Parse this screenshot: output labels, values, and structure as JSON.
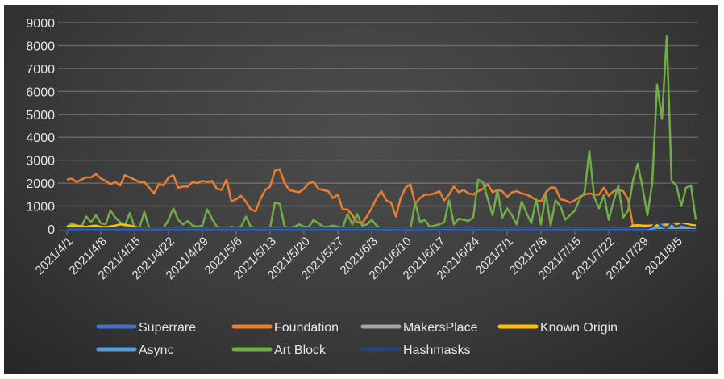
{
  "chart_data": {
    "type": "line",
    "title": "",
    "xlabel": "",
    "ylabel": "",
    "ylim": [
      0,
      9000
    ],
    "yticks": [
      "0",
      "1000",
      "2000",
      "3000",
      "4000",
      "5000",
      "6000",
      "7000",
      "8000",
      "9000"
    ],
    "grid": true,
    "legend_position": "bottom",
    "x_start": "2021/4/1",
    "x_end": "2021/8/9",
    "x_step": "1 day",
    "xtick_labels": [
      "2021/4/1",
      "2021/4/8",
      "2021/4/15",
      "2021/4/22",
      "2021/4/29",
      "2021/5/6",
      "2021/5/13",
      "2021/5/20",
      "2021/5/27",
      "2021/6/3",
      "2021/6/10",
      "2021/6/17",
      "2021/6/24",
      "2021/7/1",
      "2021/7/8",
      "2021/7/15",
      "2021/7/22",
      "2021/7/29",
      "2021/8/5"
    ],
    "series": [
      {
        "name": "Superrare",
        "color": "#4472C4",
        "values": [
          60,
          70,
          60,
          50,
          60,
          70,
          60,
          50,
          60,
          60,
          50,
          60,
          70,
          60,
          50,
          60,
          60,
          50,
          60,
          60,
          60,
          50,
          60,
          70,
          60,
          50,
          60,
          60,
          50,
          60,
          60,
          50,
          60,
          70,
          60,
          50,
          60,
          60,
          50,
          60,
          60,
          50,
          60,
          70,
          60,
          50,
          60,
          60,
          50,
          60,
          60,
          50,
          60,
          70,
          60,
          50,
          60,
          60,
          50,
          60,
          60,
          50,
          60,
          70,
          60,
          50,
          60,
          60,
          50,
          60,
          60,
          50,
          60,
          70,
          60,
          50,
          60,
          60,
          50,
          60,
          60,
          50,
          60,
          70,
          60,
          50,
          60,
          60,
          50,
          60,
          60,
          50,
          60,
          70,
          60,
          50,
          60,
          60,
          50,
          60,
          60,
          50,
          60,
          70,
          60,
          50,
          60,
          60,
          50,
          60,
          60,
          50,
          60,
          70,
          60,
          50,
          60,
          60,
          50,
          60,
          60,
          80,
          100,
          120,
          100,
          120,
          100,
          150,
          120,
          100,
          80
        ]
      },
      {
        "name": "Foundation",
        "color": "#ED7D31",
        "values": [
          2150,
          2200,
          2050,
          2150,
          2250,
          2250,
          2400,
          2200,
          2100,
          1950,
          2050,
          1900,
          2350,
          2250,
          2150,
          2050,
          2050,
          1800,
          1550,
          1950,
          1900,
          2250,
          2350,
          1800,
          1850,
          1850,
          2050,
          2000,
          2100,
          2050,
          2100,
          1750,
          1700,
          2150,
          1200,
          1300,
          1450,
          1200,
          850,
          780,
          1300,
          1700,
          1850,
          2550,
          2600,
          2000,
          1700,
          1650,
          1600,
          1750,
          2000,
          2050,
          1750,
          1700,
          1650,
          1350,
          1500,
          850,
          850,
          600,
          300,
          250,
          550,
          900,
          1350,
          1650,
          1250,
          1150,
          550,
          1350,
          1800,
          1950,
          1100,
          1350,
          1500,
          1500,
          1550,
          1650,
          1250,
          1500,
          1850,
          1600,
          1700,
          1550,
          1500,
          1650,
          1750,
          1950,
          1600,
          1700,
          1650,
          1400,
          1600,
          1650,
          1550,
          1500,
          1400,
          1250,
          1200,
          1600,
          1800,
          1800,
          1300,
          1250,
          1150,
          1250,
          1400,
          1500,
          1550,
          1500,
          1500,
          1800,
          1450,
          1650,
          1700,
          1650,
          1300,
          150,
          150,
          150,
          150,
          160,
          170,
          170,
          180,
          200,
          180,
          220,
          200,
          180,
          150
        ]
      },
      {
        "name": "MakersPlace",
        "color": "#A5A5A5",
        "values": [
          30,
          30,
          30,
          30,
          30,
          30,
          30,
          30,
          30,
          30,
          30,
          30,
          30,
          30,
          30,
          30,
          30,
          30,
          30,
          30,
          30,
          30,
          30,
          30,
          30,
          30,
          30,
          30,
          30,
          30,
          30,
          30,
          30,
          30,
          30,
          30,
          30,
          30,
          30,
          30,
          30,
          30,
          30,
          30,
          30,
          30,
          30,
          30,
          30,
          30,
          30,
          30,
          30,
          30,
          30,
          30,
          30,
          30,
          30,
          30,
          30,
          30,
          30,
          30,
          30,
          30,
          30,
          30,
          30,
          30,
          30,
          30,
          30,
          30,
          30,
          30,
          30,
          30,
          30,
          30,
          30,
          30,
          30,
          30,
          30,
          30,
          30,
          30,
          30,
          30,
          30,
          30,
          30,
          30,
          30,
          30,
          30,
          30,
          30,
          30,
          30,
          30,
          30,
          30,
          30,
          30,
          30,
          30,
          30,
          30,
          30,
          30,
          30,
          30,
          30,
          30,
          30,
          40,
          40,
          40,
          40,
          40,
          50,
          50,
          50,
          50,
          50,
          50,
          50,
          50,
          50
        ]
      },
      {
        "name": "Known Origin",
        "color": "#FFC000",
        "values": [
          100,
          150,
          150,
          120,
          100,
          130,
          150,
          100,
          80,
          120,
          150,
          200,
          180,
          150,
          100,
          60,
          40,
          30,
          20,
          20,
          20,
          20,
          20,
          20,
          20,
          20,
          20,
          20,
          20,
          20,
          20,
          20,
          20,
          20,
          20,
          20,
          20,
          20,
          20,
          20,
          20,
          20,
          20,
          20,
          20,
          20,
          20,
          20,
          20,
          20,
          20,
          20,
          20,
          20,
          20,
          20,
          20,
          20,
          20,
          20,
          20,
          20,
          20,
          20,
          20,
          20,
          20,
          20,
          20,
          20,
          20,
          20,
          20,
          20,
          20,
          20,
          20,
          20,
          20,
          20,
          20,
          20,
          20,
          20,
          20,
          20,
          20,
          20,
          20,
          20,
          20,
          20,
          20,
          20,
          20,
          20,
          20,
          20,
          20,
          20,
          20,
          20,
          20,
          20,
          20,
          20,
          20,
          20,
          20,
          20,
          20,
          20,
          20,
          20,
          20,
          20,
          20,
          150,
          170,
          150,
          130,
          150,
          150,
          170,
          200,
          120,
          250,
          200,
          220,
          180,
          150
        ]
      },
      {
        "name": "Async",
        "color": "#5B9BD5",
        "values": [
          10,
          10,
          10,
          10,
          10,
          10,
          10,
          10,
          10,
          10,
          10,
          10,
          10,
          10,
          10,
          10,
          10,
          10,
          10,
          10,
          10,
          10,
          10,
          10,
          10,
          10,
          10,
          10,
          10,
          10,
          10,
          10,
          10,
          10,
          10,
          10,
          10,
          10,
          10,
          10,
          10,
          10,
          10,
          10,
          10,
          10,
          10,
          10,
          10,
          10,
          10,
          10,
          10,
          10,
          10,
          10,
          10,
          10,
          10,
          10,
          10,
          10,
          10,
          10,
          10,
          10,
          10,
          10,
          10,
          10,
          10,
          10,
          10,
          10,
          10,
          10,
          10,
          10,
          10,
          10,
          10,
          10,
          10,
          10,
          10,
          10,
          10,
          10,
          10,
          10,
          10,
          10,
          10,
          10,
          10,
          10,
          10,
          10,
          10,
          10,
          10,
          10,
          10,
          10,
          10,
          10,
          10,
          10,
          10,
          10,
          10,
          10,
          10,
          10,
          10,
          10,
          10,
          10,
          10,
          10,
          10,
          10,
          50,
          200,
          50,
          100,
          80,
          100,
          120,
          100,
          80
        ]
      },
      {
        "name": "Art Block",
        "color": "#70AD47",
        "values": [
          100,
          250,
          150,
          100,
          550,
          300,
          600,
          250,
          200,
          800,
          500,
          300,
          150,
          700,
          50,
          50,
          750,
          50,
          0,
          0,
          50,
          400,
          900,
          400,
          200,
          350,
          150,
          100,
          150,
          850,
          450,
          100,
          50,
          0,
          100,
          50,
          100,
          550,
          100,
          50,
          0,
          0,
          50,
          1150,
          1100,
          100,
          50,
          100,
          200,
          100,
          100,
          400,
          250,
          100,
          100,
          150,
          100,
          50,
          650,
          200,
          650,
          150,
          200,
          400,
          150,
          0,
          0,
          0,
          50,
          50,
          0,
          0,
          1150,
          300,
          400,
          100,
          150,
          200,
          300,
          1250,
          200,
          450,
          400,
          350,
          500,
          2150,
          2050,
          1300,
          600,
          1700,
          500,
          900,
          600,
          200,
          1200,
          700,
          250,
          1300,
          200,
          1550,
          150,
          1250,
          1000,
          400,
          600,
          800,
          1300,
          1600,
          3400,
          1400,
          900,
          1500,
          400,
          1200,
          1900,
          500,
          800,
          2100,
          2850,
          1800,
          600,
          2000,
          6300,
          4800,
          8400,
          2100,
          1900,
          1000,
          1800,
          1900,
          400
        ]
      },
      {
        "name": "Hashmasks",
        "color": "#264478",
        "values": [
          20,
          20,
          20,
          20,
          20,
          20,
          20,
          20,
          20,
          20,
          20,
          20,
          20,
          20,
          20,
          20,
          20,
          20,
          20,
          20,
          20,
          20,
          20,
          20,
          20,
          20,
          20,
          20,
          20,
          20,
          20,
          20,
          20,
          20,
          20,
          20,
          20,
          20,
          20,
          20,
          20,
          20,
          20,
          20,
          20,
          20,
          20,
          20,
          20,
          20,
          20,
          20,
          20,
          20,
          20,
          20,
          20,
          20,
          20,
          20,
          20,
          20,
          20,
          20,
          20,
          20,
          20,
          20,
          20,
          20,
          20,
          20,
          20,
          20,
          20,
          20,
          20,
          20,
          20,
          20,
          20,
          20,
          20,
          20,
          20,
          20,
          20,
          20,
          20,
          20,
          20,
          20,
          20,
          20,
          20,
          20,
          20,
          20,
          20,
          20,
          20,
          20,
          20,
          20,
          20,
          20,
          20,
          20,
          20,
          20,
          20,
          20,
          20,
          20,
          20,
          20,
          20,
          20,
          20,
          20,
          20,
          100,
          300,
          100,
          50,
          250,
          100,
          200,
          150,
          100,
          80
        ]
      }
    ]
  }
}
